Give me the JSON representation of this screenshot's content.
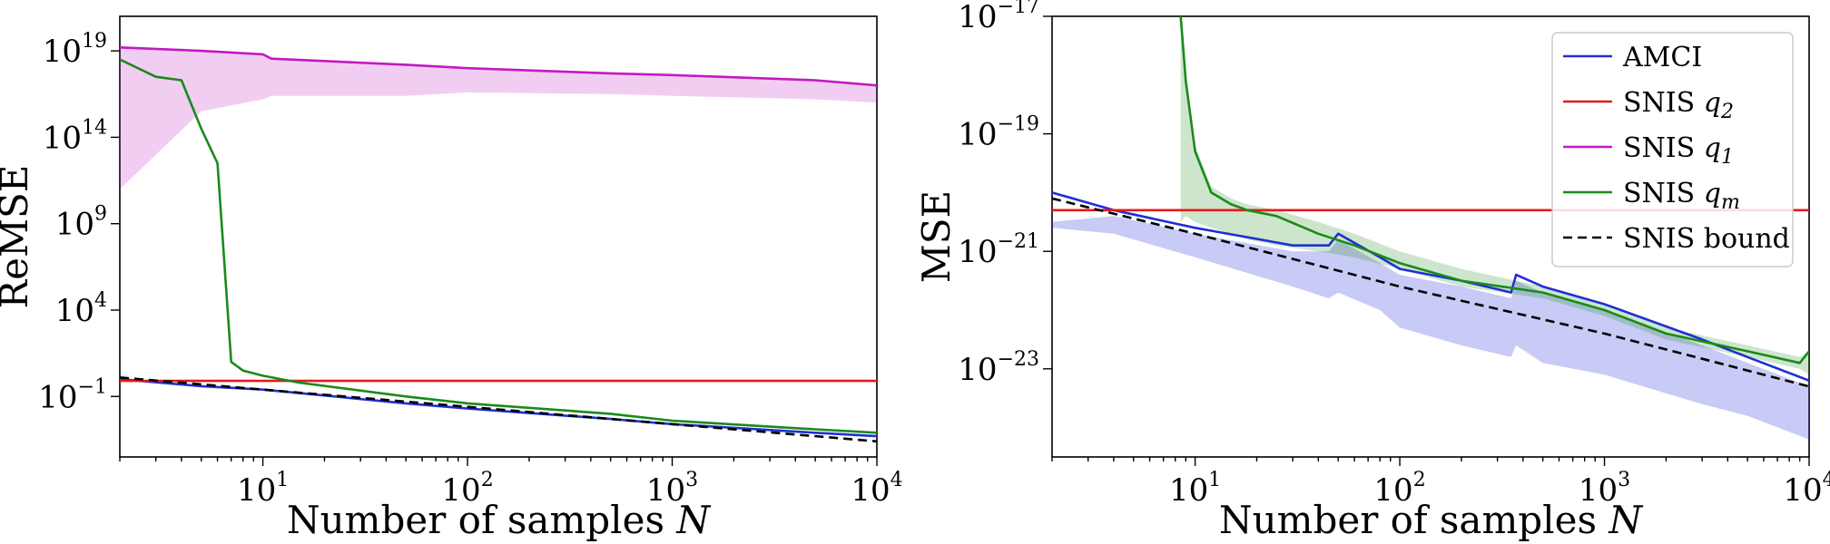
{
  "chart_data": [
    {
      "type": "line",
      "xlabel": "Number of samples N",
      "ylabel": "ReMSE",
      "x_scale": "log",
      "y_scale": "log",
      "xlim": [
        2,
        10000
      ],
      "ylim_log10": [
        -4.5,
        21
      ],
      "x_ticks": [
        "10^1",
        "10^2",
        "10^3",
        "10^4"
      ],
      "y_ticks": [
        "10^-1",
        "10^4",
        "10^9",
        "10^14",
        "10^19"
      ],
      "series": [
        {
          "name": "AMCI",
          "color": "#1f2fd6",
          "x": [
            2,
            5,
            10,
            50,
            100,
            500,
            1000,
            5000,
            10000
          ],
          "log10_y": [
            0.0,
            -0.4,
            -0.6,
            -1.4,
            -1.7,
            -2.3,
            -2.6,
            -3.1,
            -3.3
          ]
        },
        {
          "name": "SNIS q2",
          "color": "#e41a1c",
          "x": [
            2,
            10000
          ],
          "log10_y": [
            -0.1,
            -0.1
          ]
        },
        {
          "name": "SNIS q1",
          "color": "#c21ac2",
          "x": [
            2,
            5,
            10,
            11,
            50,
            100,
            500,
            1000,
            5000,
            10000
          ],
          "log10_y": [
            19.2,
            19.0,
            18.8,
            18.55,
            18.2,
            18.0,
            17.7,
            17.6,
            17.3,
            17.0
          ],
          "band_low": [
            11.0,
            15.5,
            16.2,
            16.4,
            16.4,
            16.6,
            16.5,
            16.4,
            16.2,
            16.0
          ],
          "band_high": [
            19.2,
            19.0,
            18.8,
            18.55,
            18.2,
            18.0,
            17.7,
            17.6,
            17.3,
            17.0
          ]
        },
        {
          "name": "SNIS qm",
          "color": "#1a8a1a",
          "x": [
            2,
            3,
            4,
            5,
            6,
            7,
            8,
            10,
            15,
            50,
            100,
            500,
            1000,
            5000,
            10000
          ],
          "log10_y": [
            18.5,
            17.5,
            17.3,
            14.5,
            12.5,
            1.0,
            0.5,
            0.2,
            -0.2,
            -1.0,
            -1.4,
            -2.0,
            -2.4,
            -2.9,
            -3.1
          ]
        },
        {
          "name": "SNIS bound",
          "color": "#000000",
          "dashed": true,
          "x": [
            2,
            10,
            100,
            1000,
            10000
          ],
          "log10_y": [
            0.1,
            -0.6,
            -1.6,
            -2.6,
            -3.6
          ]
        }
      ]
    },
    {
      "type": "line",
      "xlabel": "Number of samples N",
      "ylabel": "MSE",
      "x_scale": "log",
      "y_scale": "log",
      "xlim": [
        2,
        10000
      ],
      "ylim_log10": [
        -24.5,
        -17
      ],
      "x_ticks": [
        "10^1",
        "10^2",
        "10^3",
        "10^4"
      ],
      "y_ticks": [
        "10^-23",
        "10^-21",
        "10^-19",
        "10^-17"
      ],
      "legend": {
        "position": "top-right",
        "entries": [
          {
            "label": "AMCI",
            "color": "#1f2fd6",
            "style": "solid"
          },
          {
            "label": "SNIS q",
            "sub": "2",
            "color": "#e41a1c",
            "style": "solid"
          },
          {
            "label": "SNIS q",
            "sub": "1",
            "color": "#c21ac2",
            "style": "solid"
          },
          {
            "label": "SNIS q",
            "sub": "m",
            "color": "#1a8a1a",
            "style": "solid"
          },
          {
            "label": "SNIS bound",
            "color": "#000000",
            "style": "dashed"
          }
        ]
      },
      "series": [
        {
          "name": "AMCI",
          "color": "#1f2fd6",
          "x": [
            2,
            4,
            10,
            30,
            45,
            50,
            80,
            100,
            200,
            350,
            370,
            500,
            1000,
            3000,
            5000,
            10000
          ],
          "log10_y": [
            -20.0,
            -20.3,
            -20.6,
            -20.9,
            -20.9,
            -20.7,
            -21.1,
            -21.3,
            -21.5,
            -21.7,
            -21.4,
            -21.6,
            -21.9,
            -22.5,
            -22.8,
            -23.2
          ],
          "band_low": [
            -20.6,
            -20.7,
            -21.1,
            -21.6,
            -21.8,
            -21.7,
            -22.0,
            -22.3,
            -22.6,
            -22.8,
            -22.6,
            -22.9,
            -23.1,
            -23.6,
            -23.8,
            -24.2
          ],
          "band_high": [
            -20.5,
            -20.4,
            -20.7,
            -21.0,
            -21.0,
            -20.8,
            -21.2,
            -21.4,
            -21.6,
            -21.8,
            -21.5,
            -21.7,
            -22.0,
            -22.6,
            -22.9,
            -23.3
          ]
        },
        {
          "name": "SNIS q2",
          "color": "#e41a1c",
          "x": [
            2,
            10000
          ],
          "log10_y": [
            -20.3,
            -20.3
          ]
        },
        {
          "name": "SNIS qm",
          "color": "#1a8a1a",
          "x": [
            8.5,
            9,
            10,
            12,
            15,
            18,
            25,
            40,
            60,
            100,
            200,
            500,
            1000,
            2000,
            5000,
            9000,
            10000
          ],
          "log10_y": [
            -17.0,
            -18.1,
            -19.3,
            -20.0,
            -20.2,
            -20.3,
            -20.4,
            -20.7,
            -20.9,
            -21.2,
            -21.5,
            -21.7,
            -22.0,
            -22.4,
            -22.7,
            -22.9,
            -22.7
          ],
          "band_low": [
            -20.5,
            -20.4,
            -20.5,
            -20.6,
            -20.7,
            -20.8,
            -20.9,
            -21.0,
            -21.1,
            -21.3,
            -21.6,
            -21.8,
            -22.1,
            -22.5,
            -22.8,
            -23.0,
            -23.1
          ],
          "band_high": [
            -17.2,
            -18.0,
            -19.2,
            -19.9,
            -20.1,
            -20.2,
            -20.3,
            -20.5,
            -20.7,
            -21.0,
            -21.3,
            -21.6,
            -21.9,
            -22.3,
            -22.6,
            -22.8,
            -22.7
          ]
        },
        {
          "name": "SNIS bound",
          "color": "#000000",
          "dashed": true,
          "x": [
            2,
            10,
            100,
            1000,
            10000
          ],
          "log10_y": [
            -20.1,
            -20.7,
            -21.6,
            -22.4,
            -23.3
          ]
        }
      ]
    }
  ]
}
